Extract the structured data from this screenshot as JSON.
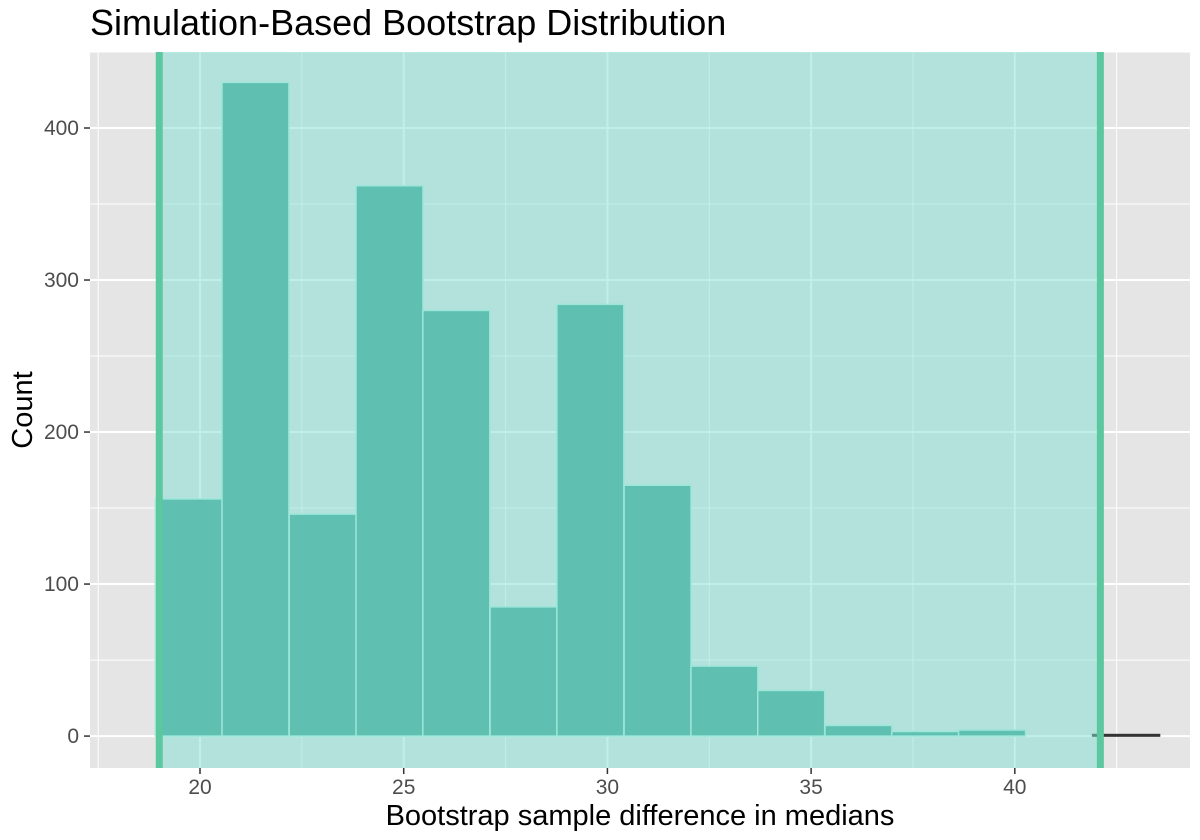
{
  "chart_data": {
    "type": "bar",
    "title": "Simulation-Based Bootstrap Distribution",
    "xlabel": "Bootstrap sample difference in medians",
    "ylabel": "Count",
    "xlim": [
      17.3,
      44.3
    ],
    "ylim": [
      -21,
      450
    ],
    "x_ticks": [
      20,
      25,
      30,
      35,
      40
    ],
    "y_ticks": [
      0,
      100,
      200,
      300,
      400
    ],
    "bin_width": 1.643,
    "bins": [
      {
        "start": 18.9,
        "count": 156
      },
      {
        "start": 20.54,
        "count": 430
      },
      {
        "start": 22.19,
        "count": 146
      },
      {
        "start": 23.83,
        "count": 362
      },
      {
        "start": 25.47,
        "count": 280
      },
      {
        "start": 27.12,
        "count": 85
      },
      {
        "start": 28.76,
        "count": 284
      },
      {
        "start": 30.41,
        "count": 165
      },
      {
        "start": 32.05,
        "count": 46
      },
      {
        "start": 33.69,
        "count": 30
      },
      {
        "start": 35.34,
        "count": 7
      },
      {
        "start": 36.98,
        "count": 3
      },
      {
        "start": 38.62,
        "count": 4
      },
      {
        "start": 40.27,
        "count": 0
      },
      {
        "start": 41.91,
        "count": 1
      }
    ],
    "confidence_interval": {
      "lower": 19.0,
      "upper": 42.1
    },
    "colors": {
      "panel": "#e5e5e5",
      "grid": "#ffffff",
      "bar_fill": "#3f9f8f",
      "bar_edge": "#b8ede2",
      "ci_fill": "#7fe0d2",
      "ci_line": "#5cc89f",
      "tick_label": "#4d4d4d"
    },
    "grid": true,
    "legend": "none"
  }
}
